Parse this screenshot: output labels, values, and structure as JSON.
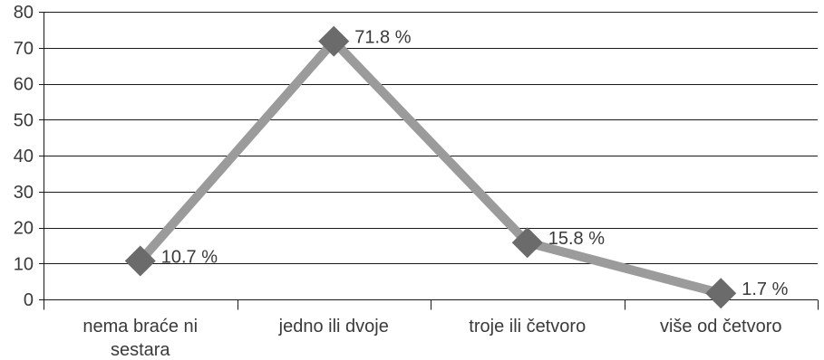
{
  "chart_data": {
    "type": "line",
    "title": "",
    "xlabel": "",
    "ylabel": "",
    "categories": [
      "nema braće ni sestara",
      "jedno ili dvoje",
      "troje ili četvoro",
      "više od četvoro"
    ],
    "category_lines": [
      [
        "nema braće ni",
        "sestara"
      ],
      [
        "jedno ili dvoje"
      ],
      [
        "troje ili četvoro"
      ],
      [
        "više od četvoro"
      ]
    ],
    "series": [
      {
        "values": [
          10.7,
          71.8,
          15.8,
          1.7
        ],
        "labels": [
          "10.7 %",
          "71.8 %",
          "15.8 %",
          "1.7 %"
        ]
      }
    ],
    "ylim": [
      0,
      80
    ],
    "yticks": [
      0,
      10,
      20,
      30,
      40,
      50,
      60,
      70,
      80
    ],
    "grid": true,
    "legend": "none",
    "colors": {
      "line": "#9b9b9b",
      "marker": "#6b6b6b",
      "grid": "#1a1a1a",
      "text": "#3a3a3a"
    }
  }
}
